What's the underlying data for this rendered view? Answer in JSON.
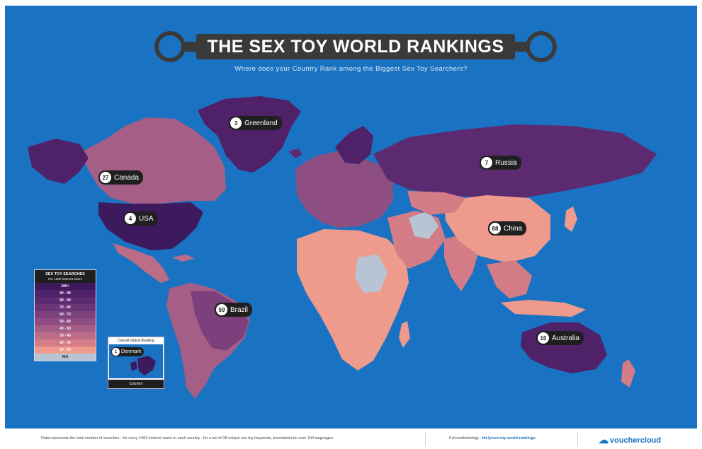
{
  "header": {
    "title": "THE SEX TOY WORLD RANKINGS",
    "subtitle": "Where does your Country Rank among the Biggest Sex Toy Searchers?"
  },
  "callouts": [
    {
      "rank": "3",
      "name": "Greenland"
    },
    {
      "rank": "7",
      "name": "Russia"
    },
    {
      "rank": "27",
      "name": "Canada"
    },
    {
      "rank": "4",
      "name": "USA"
    },
    {
      "rank": "88",
      "name": "China"
    },
    {
      "rank": "59",
      "name": "Brazil"
    },
    {
      "rank": "10",
      "name": "Australia"
    }
  ],
  "legend": {
    "title": "SEX TOY SEARCHES",
    "subtitle": "Per 1000 Internet Users",
    "rows": [
      {
        "label": "100+",
        "color": "#3d1a5e"
      },
      {
        "label": "90 - 99",
        "color": "#4e2168"
      },
      {
        "label": "80 - 90",
        "color": "#5c2a70"
      },
      {
        "label": "70 - 80",
        "color": "#6b3577"
      },
      {
        "label": "60 - 70",
        "color": "#7c417d"
      },
      {
        "label": "50 - 60",
        "color": "#8f4e82"
      },
      {
        "label": "40 - 50",
        "color": "#a55e86"
      },
      {
        "label": "30 - 40",
        "color": "#bb6c87"
      },
      {
        "label": "20 - 30",
        "color": "#d47c86"
      },
      {
        "label": "10 - 20",
        "color": "#ee9a8c"
      },
      {
        "label": "N/A",
        "color": "#b8c4d4"
      }
    ]
  },
  "inset": {
    "title": "Overall Global Ranking",
    "rank": "1",
    "name": "Denmark",
    "footer": "Country"
  },
  "footer": {
    "note": "Data represents the total number of searches - for every 1000 internet users in each country - for a set of 18 unique sex toy keywords, translated into over 100 languages.",
    "methodology_label": "Full methodology -",
    "methodology_link": "bit.ly/sex-toy-world-rankings",
    "brand": "vouchercloud"
  },
  "colors": {
    "ocean": "#1a73c2",
    "title_bg": "#3a3a3a",
    "callout_bg": "#1f1f1f"
  }
}
